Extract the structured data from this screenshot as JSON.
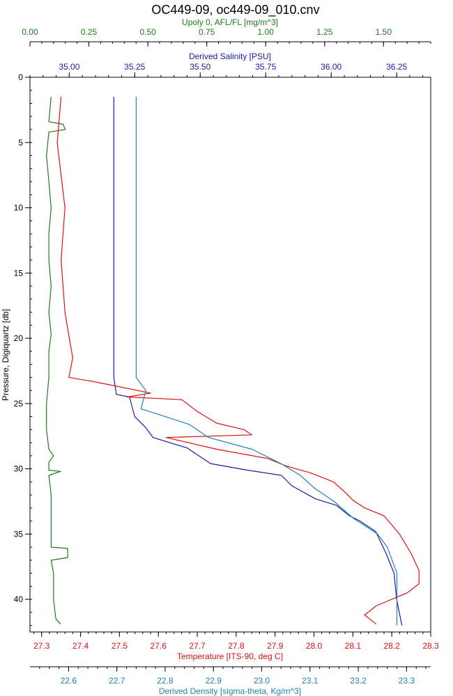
{
  "chart_data": {
    "type": "line",
    "title": "OC449-09, oc449-09_010.cnv",
    "ylabel": "Pressure, Digiquartz [db]",
    "ylim": [
      0,
      42.5
    ],
    "y_ticks": [
      "0",
      "5",
      "10",
      "15",
      "20",
      "25",
      "30",
      "35",
      "40"
    ],
    "axes": {
      "fluor": {
        "label": "Upoly 0, AFL/FL [mg/m^3]",
        "color": "#1e7a1e",
        "range": [
          0,
          1.7
        ],
        "ticks": [
          "0.00",
          "0.25",
          "0.50",
          "0.75",
          "1.00",
          "1.25",
          "1.50"
        ]
      },
      "salinity": {
        "label": "Derived Salinity [PSU]",
        "color": "#1a1aa6",
        "range": [
          34.85,
          36.38
        ],
        "ticks": [
          "35.00",
          "35.25",
          "35.50",
          "35.75",
          "36.00",
          "36.25"
        ]
      },
      "temperature": {
        "label": "Temperature [ITS-90, deg C]",
        "color": "#dd1111",
        "range": [
          27.27,
          28.3
        ],
        "ticks": [
          "27.3",
          "27.4",
          "27.5",
          "27.6",
          "27.7",
          "27.8",
          "27.9",
          "28.0",
          "28.1",
          "28.2",
          "28.3"
        ]
      },
      "density": {
        "label": "Derived Density [sigma-theta, Kg/m^3]",
        "color": "#1b86b0",
        "range": [
          22.52,
          23.35
        ],
        "ticks": [
          "22.6",
          "22.7",
          "22.8",
          "22.9",
          "23.0",
          "23.1",
          "23.2",
          "23.3"
        ]
      }
    },
    "series": [
      {
        "name": "Upoly 0, AFL/FL [mg/m^3]",
        "axis": "fluor",
        "color": "#1e7a1e",
        "points": [
          [
            0.09,
            1.5
          ],
          [
            0.08,
            3.4
          ],
          [
            0.14,
            3.6
          ],
          [
            0.15,
            4.0
          ],
          [
            0.08,
            4.2
          ],
          [
            0.07,
            6
          ],
          [
            0.08,
            8
          ],
          [
            0.09,
            10
          ],
          [
            0.08,
            12
          ],
          [
            0.08,
            14
          ],
          [
            0.09,
            16
          ],
          [
            0.08,
            18
          ],
          [
            0.09,
            19.7
          ],
          [
            0.08,
            21
          ],
          [
            0.08,
            23
          ],
          [
            0.07,
            25
          ],
          [
            0.07,
            27
          ],
          [
            0.08,
            28.5
          ],
          [
            0.1,
            29.0
          ],
          [
            0.08,
            29.5
          ],
          [
            0.08,
            30.1
          ],
          [
            0.13,
            30.2
          ],
          [
            0.08,
            30.5
          ],
          [
            0.09,
            32
          ],
          [
            0.09,
            34
          ],
          [
            0.09,
            36.0
          ],
          [
            0.16,
            36.1
          ],
          [
            0.16,
            36.8
          ],
          [
            0.09,
            37
          ],
          [
            0.1,
            38
          ],
          [
            0.1,
            40
          ],
          [
            0.11,
            41.5
          ],
          [
            0.13,
            41.9
          ]
        ]
      },
      {
        "name": "Derived Salinity [PSU]",
        "axis": "salinity",
        "color": "#1a1aa6",
        "points": [
          [
            35.17,
            1.5
          ],
          [
            35.17,
            5
          ],
          [
            35.17,
            10
          ],
          [
            35.17,
            15
          ],
          [
            35.17,
            20
          ],
          [
            35.17,
            23
          ],
          [
            35.18,
            24.3
          ],
          [
            35.23,
            24.5
          ],
          [
            35.25,
            26.0
          ],
          [
            35.29,
            26.8
          ],
          [
            35.32,
            27.6
          ],
          [
            35.45,
            28.4
          ],
          [
            35.54,
            29.6
          ],
          [
            35.68,
            30.1
          ],
          [
            35.81,
            30.5
          ],
          [
            35.85,
            31.3
          ],
          [
            35.94,
            32.3
          ],
          [
            36.02,
            32.8
          ],
          [
            36.07,
            33.6
          ],
          [
            36.11,
            34.0
          ],
          [
            36.17,
            34.8
          ],
          [
            36.21,
            36.5
          ],
          [
            36.24,
            38.0
          ],
          [
            36.25,
            40.0
          ],
          [
            36.27,
            42.0
          ]
        ]
      },
      {
        "name": "Temperature [ITS-90, deg C]",
        "axis": "temperature",
        "color": "#dd1111",
        "points": [
          [
            27.35,
            1.5
          ],
          [
            27.34,
            5
          ],
          [
            27.36,
            10
          ],
          [
            27.35,
            14
          ],
          [
            27.36,
            18
          ],
          [
            27.37,
            19.8
          ],
          [
            27.38,
            21.5
          ],
          [
            27.37,
            23.0
          ],
          [
            27.43,
            23.3
          ],
          [
            27.58,
            24.2
          ],
          [
            27.52,
            24.5
          ],
          [
            27.66,
            24.7
          ],
          [
            27.7,
            25.6
          ],
          [
            27.75,
            26.5
          ],
          [
            27.82,
            27.0
          ],
          [
            27.84,
            27.4
          ],
          [
            27.62,
            27.6
          ],
          [
            27.75,
            28.5
          ],
          [
            27.88,
            29.2
          ],
          [
            27.93,
            29.8
          ],
          [
            27.99,
            30.3
          ],
          [
            28.05,
            31.0
          ],
          [
            28.08,
            31.8
          ],
          [
            28.1,
            32.4
          ],
          [
            28.13,
            33.0
          ],
          [
            28.18,
            33.6
          ],
          [
            28.22,
            35.0
          ],
          [
            28.25,
            36.5
          ],
          [
            28.27,
            37.8
          ],
          [
            28.27,
            38.8
          ],
          [
            28.24,
            39.5
          ],
          [
            28.16,
            40.5
          ],
          [
            28.13,
            41.2
          ],
          [
            28.16,
            41.9
          ]
        ]
      },
      {
        "name": "Derived Density [sigma-theta, Kg/m^3]",
        "axis": "density",
        "color": "#1b86b0",
        "points": [
          [
            22.74,
            1.5
          ],
          [
            22.74,
            5
          ],
          [
            22.74,
            10
          ],
          [
            22.74,
            15
          ],
          [
            22.74,
            20
          ],
          [
            22.74,
            23.0
          ],
          [
            22.76,
            24.0
          ],
          [
            22.75,
            25.4
          ],
          [
            22.85,
            26.6
          ],
          [
            22.89,
            27.6
          ],
          [
            22.98,
            28.5
          ],
          [
            23.04,
            29.6
          ],
          [
            23.08,
            30.5
          ],
          [
            23.11,
            31.5
          ],
          [
            23.15,
            32.5
          ],
          [
            23.19,
            33.8
          ],
          [
            23.24,
            35.0
          ],
          [
            23.26,
            36.0
          ],
          [
            23.28,
            38.0
          ],
          [
            23.28,
            40.0
          ],
          [
            23.28,
            42.0
          ]
        ]
      }
    ]
  }
}
